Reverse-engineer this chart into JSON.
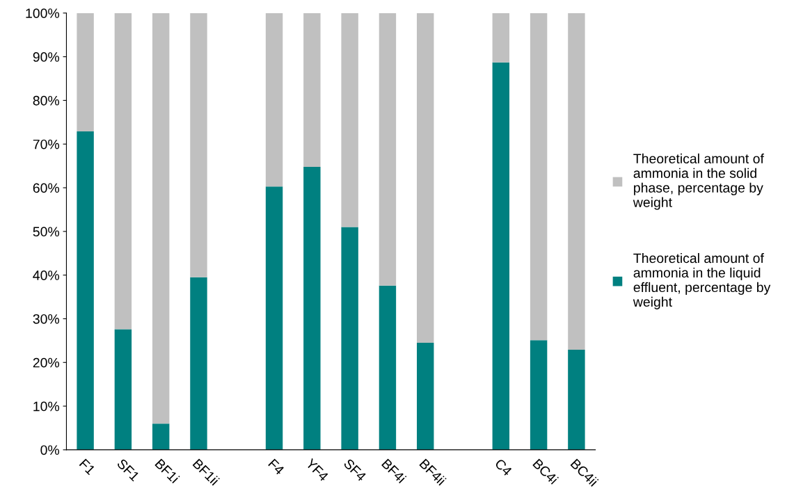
{
  "chart_data": {
    "type": "bar",
    "stacked": true,
    "categories": [
      "F1",
      "SF1",
      "BF1i",
      "BF1ii",
      null,
      "F4",
      "YF4",
      "SF4",
      "BF4i",
      "BF4ii",
      null,
      "C4",
      "BC4i",
      "BC4ii"
    ],
    "series": [
      {
        "name": "Theoretical amount of\nammonia in the liquid\neffluent, percentage by\nweight",
        "color": "#008080",
        "values": [
          72.9,
          27.6,
          6.0,
          39.5,
          null,
          60.3,
          64.8,
          51.0,
          37.6,
          24.5,
          null,
          88.7,
          25.1,
          22.9
        ]
      },
      {
        "name": "Theoretical amount of\nammonia in the solid\nphase, percentage by\nweight",
        "color": "#c0c0c0",
        "values": [
          27.1,
          72.4,
          94.0,
          60.5,
          null,
          39.7,
          35.2,
          49.0,
          62.4,
          75.5,
          null,
          11.3,
          74.9,
          77.1
        ]
      }
    ],
    "ylim": [
      0,
      100
    ],
    "yticks": [
      {
        "value": 0,
        "label": "0%"
      },
      {
        "value": 10,
        "label": "10%"
      },
      {
        "value": 20,
        "label": "20%"
      },
      {
        "value": 30,
        "label": "30%"
      },
      {
        "value": 40,
        "label": "40%"
      },
      {
        "value": 50,
        "label": "50%"
      },
      {
        "value": 60,
        "label": "60%"
      },
      {
        "value": 70,
        "label": "70%"
      },
      {
        "value": 80,
        "label": "80%"
      },
      {
        "value": 90,
        "label": "90%"
      },
      {
        "value": 100,
        "label": "100%"
      }
    ],
    "grid": false,
    "legend": "right"
  }
}
